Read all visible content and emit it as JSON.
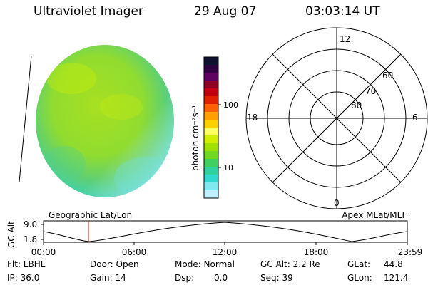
{
  "header": {
    "instrument": "Ultraviolet Imager",
    "date": "29 Aug 07",
    "time": "03:03:14 UT"
  },
  "colorbar": {
    "unit_label": "photon cm⁻²s⁻¹",
    "ticks": [
      "100",
      "10"
    ],
    "colors": [
      "#101030",
      "#300040",
      "#600060",
      "#900020",
      "#c00010",
      "#e02000",
      "#ff6000",
      "#ffa000",
      "#ffd000",
      "#ffff60",
      "#d0f000",
      "#a0e000",
      "#70d820",
      "#40d060",
      "#30d0a0",
      "#30d8d0",
      "#80e8f0",
      "#c0f0ff"
    ]
  },
  "polar": {
    "mlt_labels": [
      "12",
      "18",
      "6",
      "0"
    ],
    "lat_labels": [
      "60",
      "70",
      "80"
    ]
  },
  "orbit_plot": {
    "y_axis_label": "GC Alt",
    "y_ticks": [
      "9.0",
      "1.8"
    ],
    "left_caption": "Geographic Lat/Lon",
    "right_caption": "Apex MLat/MLT",
    "x_ticks": [
      "00:00",
      "06:00",
      "12:00",
      "18:00",
      "23:59"
    ],
    "marker_color": "#c02000"
  },
  "info": {
    "flt": "Flt: LBHL",
    "ip": "IP: 36.0",
    "door": "Door: Open",
    "gain": "Gain: 14",
    "mode": "Mode: Normal",
    "dsp": "Dsp:",
    "dsp_value": "0.0",
    "gc_alt": "GC Alt: 2.2 Re",
    "seq": "Seq: 39",
    "glat_label": "GLat:",
    "glat_value": "44.8",
    "glon_label": "GLon:",
    "glon_value": "121.4"
  }
}
